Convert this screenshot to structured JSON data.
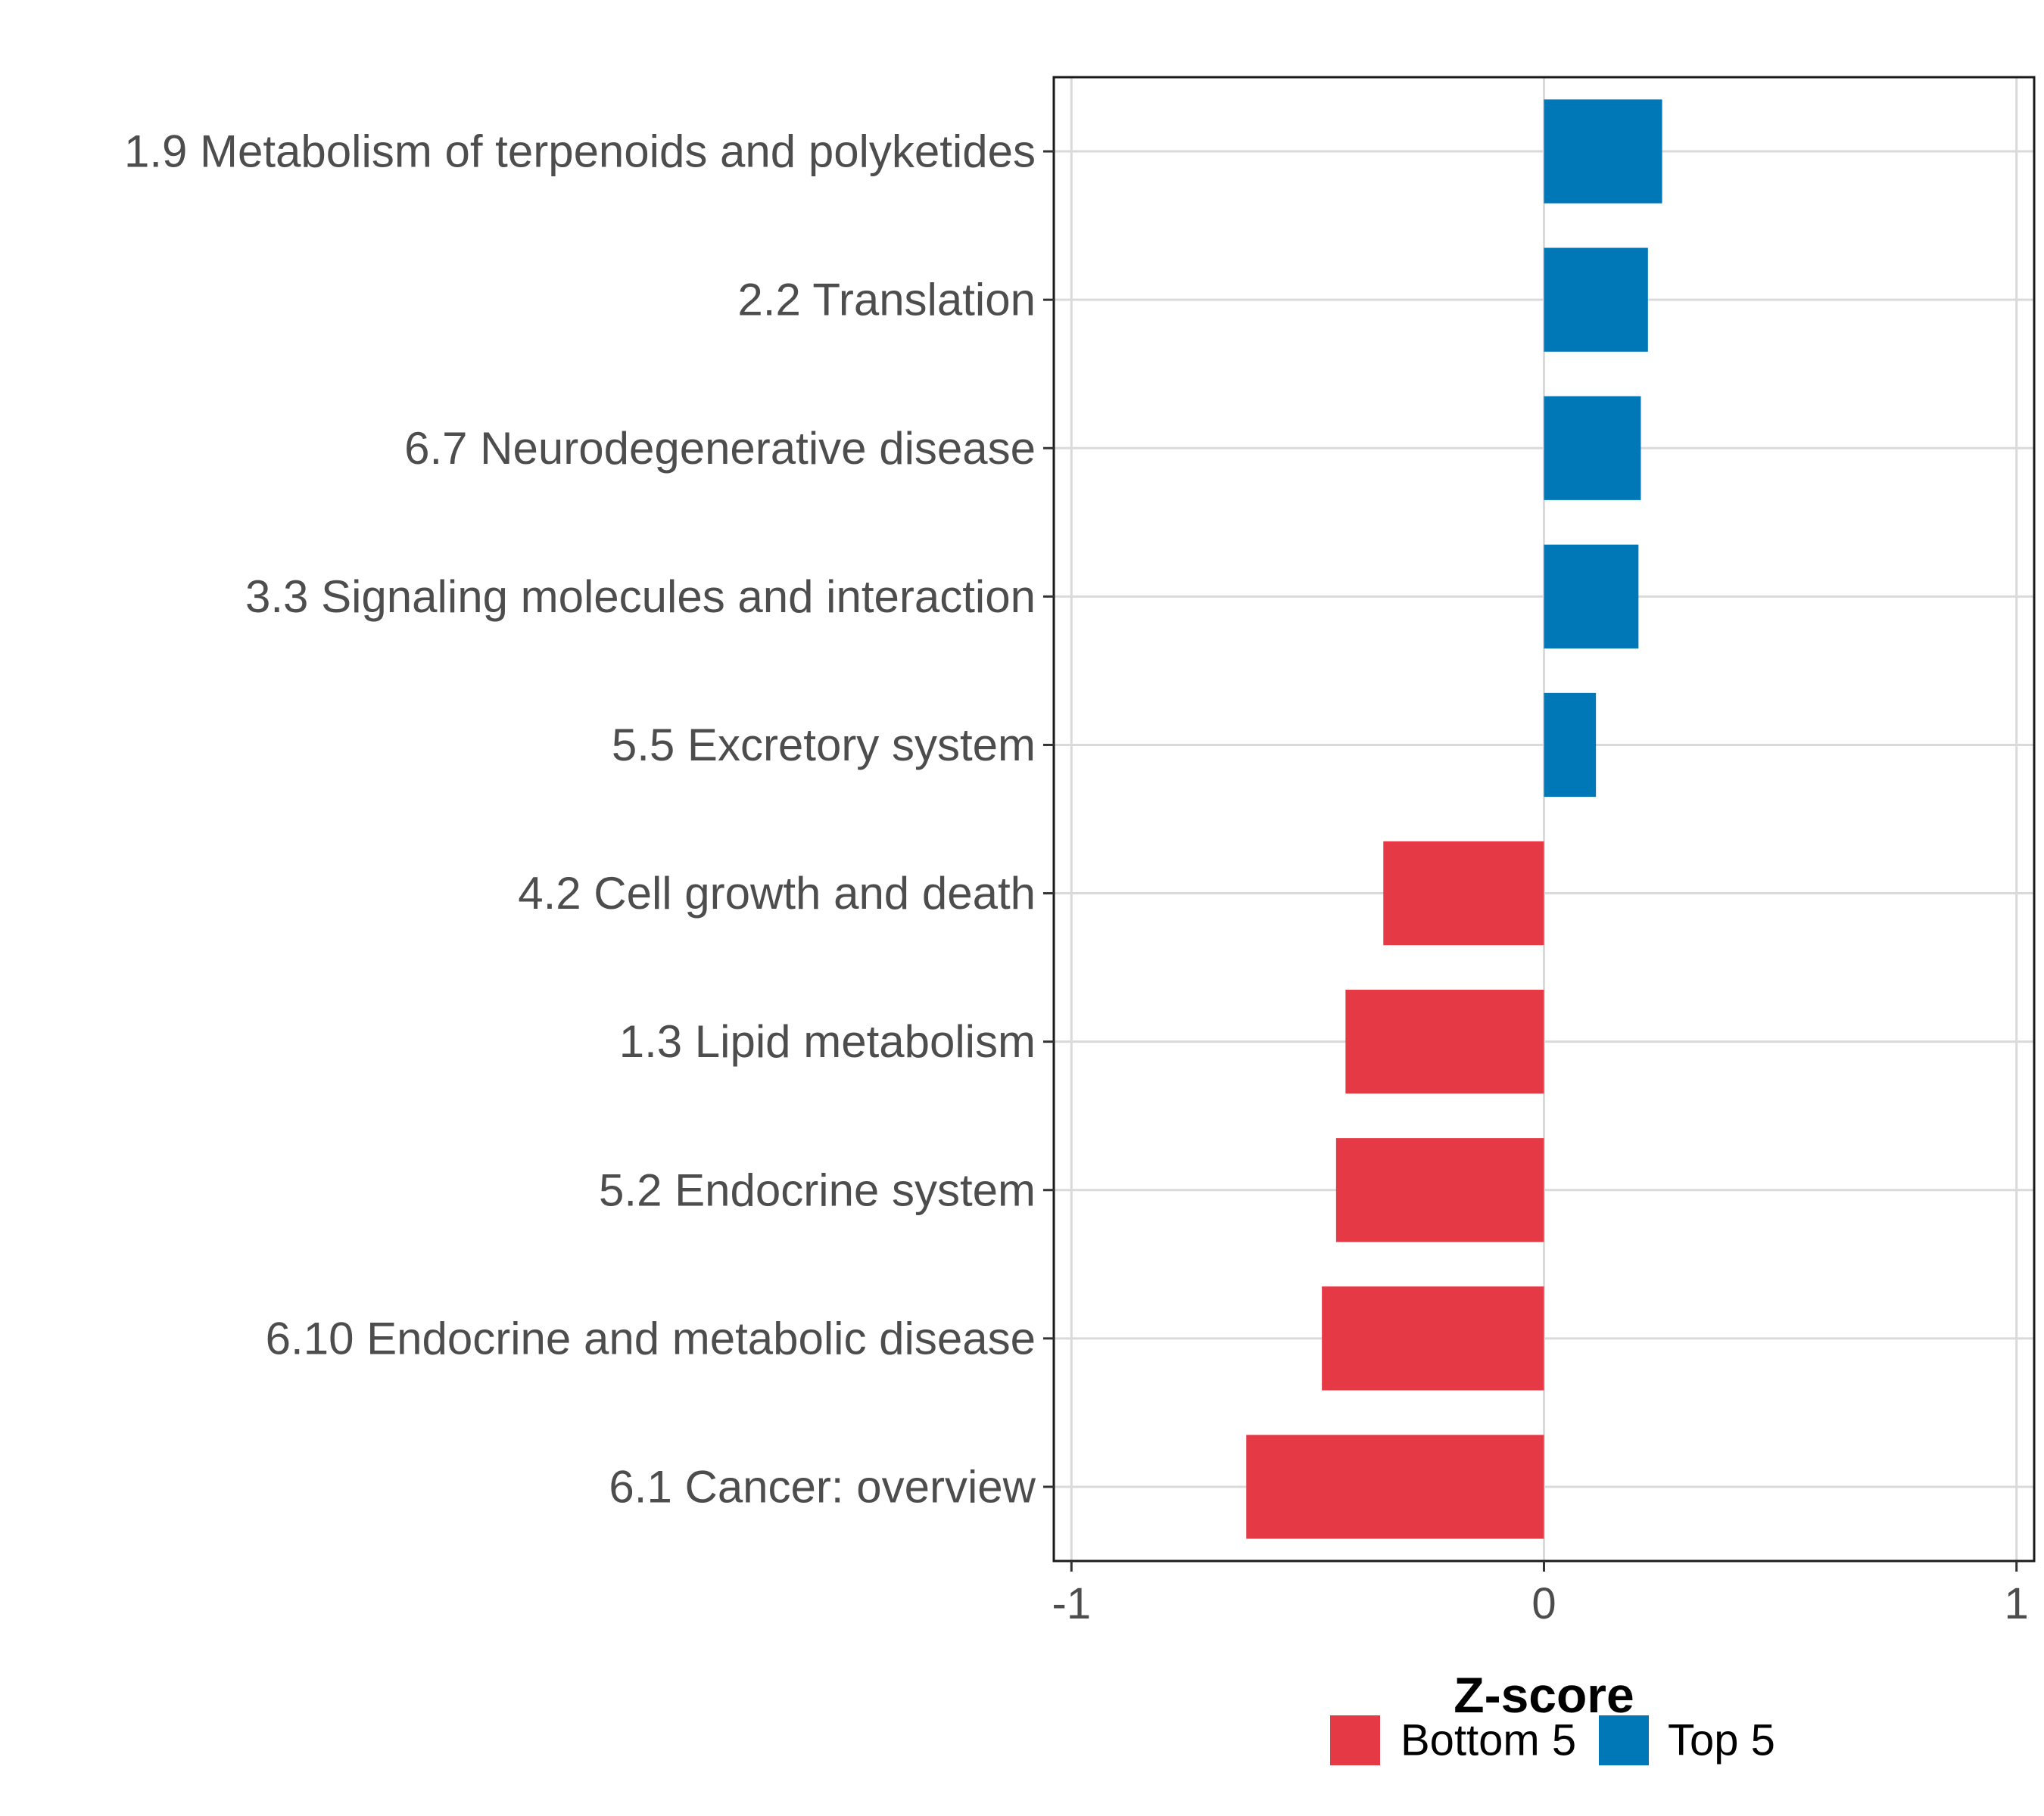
{
  "chart_data": {
    "type": "bar",
    "orientation": "horizontal",
    "categories": [
      "1.9 Metabolism of terpenoids and polyketides",
      "2.2 Translation",
      "6.7 Neurodegenerative disease",
      "3.3 Signaling molecules and interaction",
      "5.5 Excretory system",
      "4.2 Cell growth and death",
      "1.3 Lipid metabolism",
      "5.2 Endocrine system",
      "6.10 Endocrine and metabolic disease",
      "6.1 Cancer: overview"
    ],
    "values": [
      0.25,
      0.22,
      0.205,
      0.2,
      0.11,
      -0.34,
      -0.42,
      -0.44,
      -0.47,
      -0.63
    ],
    "groups": [
      "Top 5",
      "Top 5",
      "Top 5",
      "Top 5",
      "Top 5",
      "Bottom 5",
      "Bottom 5",
      "Bottom 5",
      "Bottom 5",
      "Bottom 5"
    ],
    "xlabel": "Z-score",
    "ylabel": "",
    "title": "",
    "xlim": [
      -1,
      1
    ],
    "xticks": [
      "-1",
      "0",
      "1"
    ],
    "xtick_values": [
      -1,
      0,
      1
    ],
    "grid": true,
    "legend": {
      "placement": "bottom",
      "entries": [
        {
          "label": "Bottom 5",
          "color": "#e63946"
        },
        {
          "label": "Top 5",
          "color": "#0077b6"
        }
      ]
    }
  }
}
